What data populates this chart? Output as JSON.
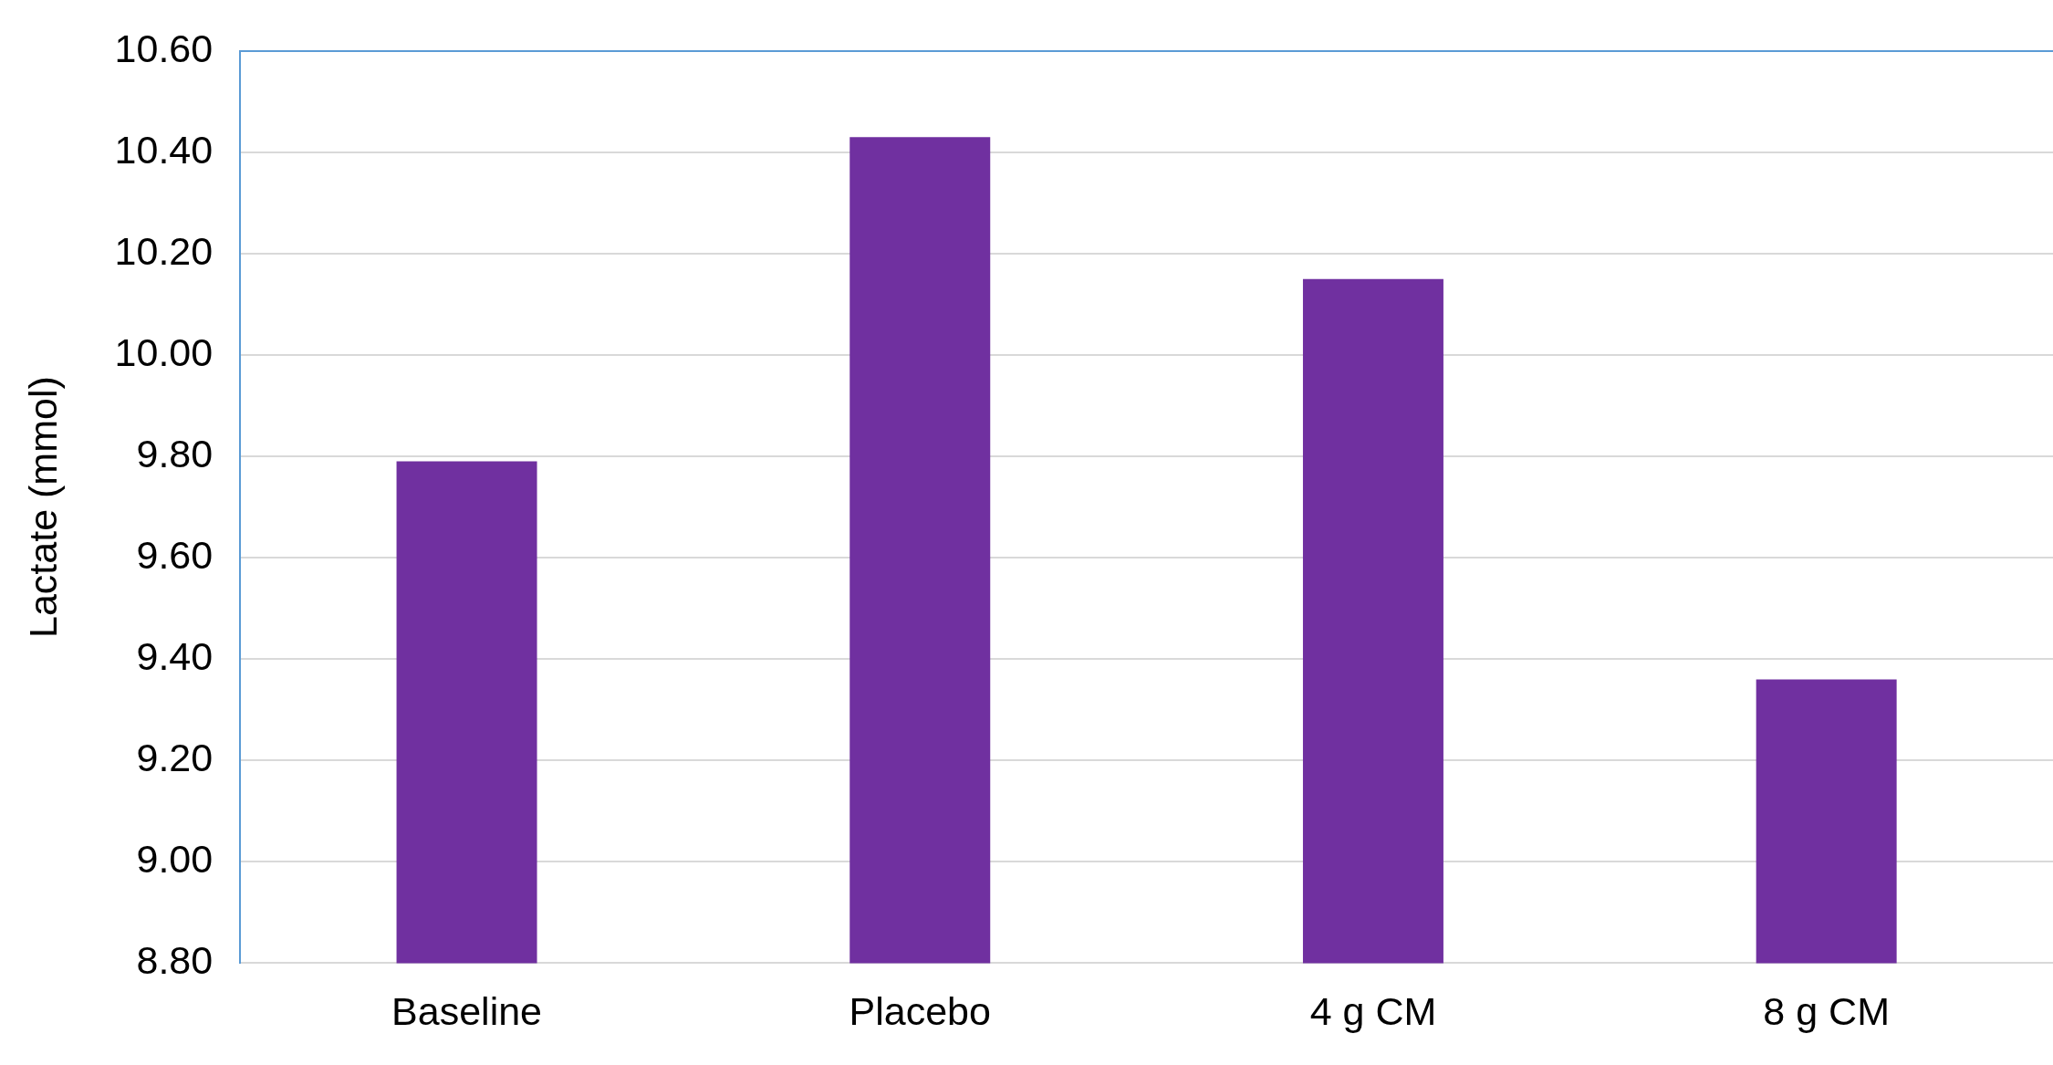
{
  "chart_data": {
    "type": "bar",
    "ylabel": "Lactate (mmol)",
    "categories": [
      "Baseline",
      "Placebo",
      "4 g CM",
      "8 g CM"
    ],
    "values": [
      9.79,
      10.43,
      10.15,
      9.36
    ],
    "color": "#7030a0",
    "ylim": [
      8.8,
      10.6
    ],
    "yticks": [
      {
        "value": 8.8,
        "label": "8.80"
      },
      {
        "value": 9.0,
        "label": "9.00"
      },
      {
        "value": 9.2,
        "label": "9.20"
      },
      {
        "value": 9.4,
        "label": "9.40"
      },
      {
        "value": 9.6,
        "label": "9.60"
      },
      {
        "value": 9.8,
        "label": "9.80"
      },
      {
        "value": 10.0,
        "label": "10.00"
      },
      {
        "value": 10.2,
        "label": "10.20"
      },
      {
        "value": 10.4,
        "label": "10.40"
      },
      {
        "value": 10.6,
        "label": "10.60"
      }
    ],
    "grid": "y",
    "legend": false
  }
}
